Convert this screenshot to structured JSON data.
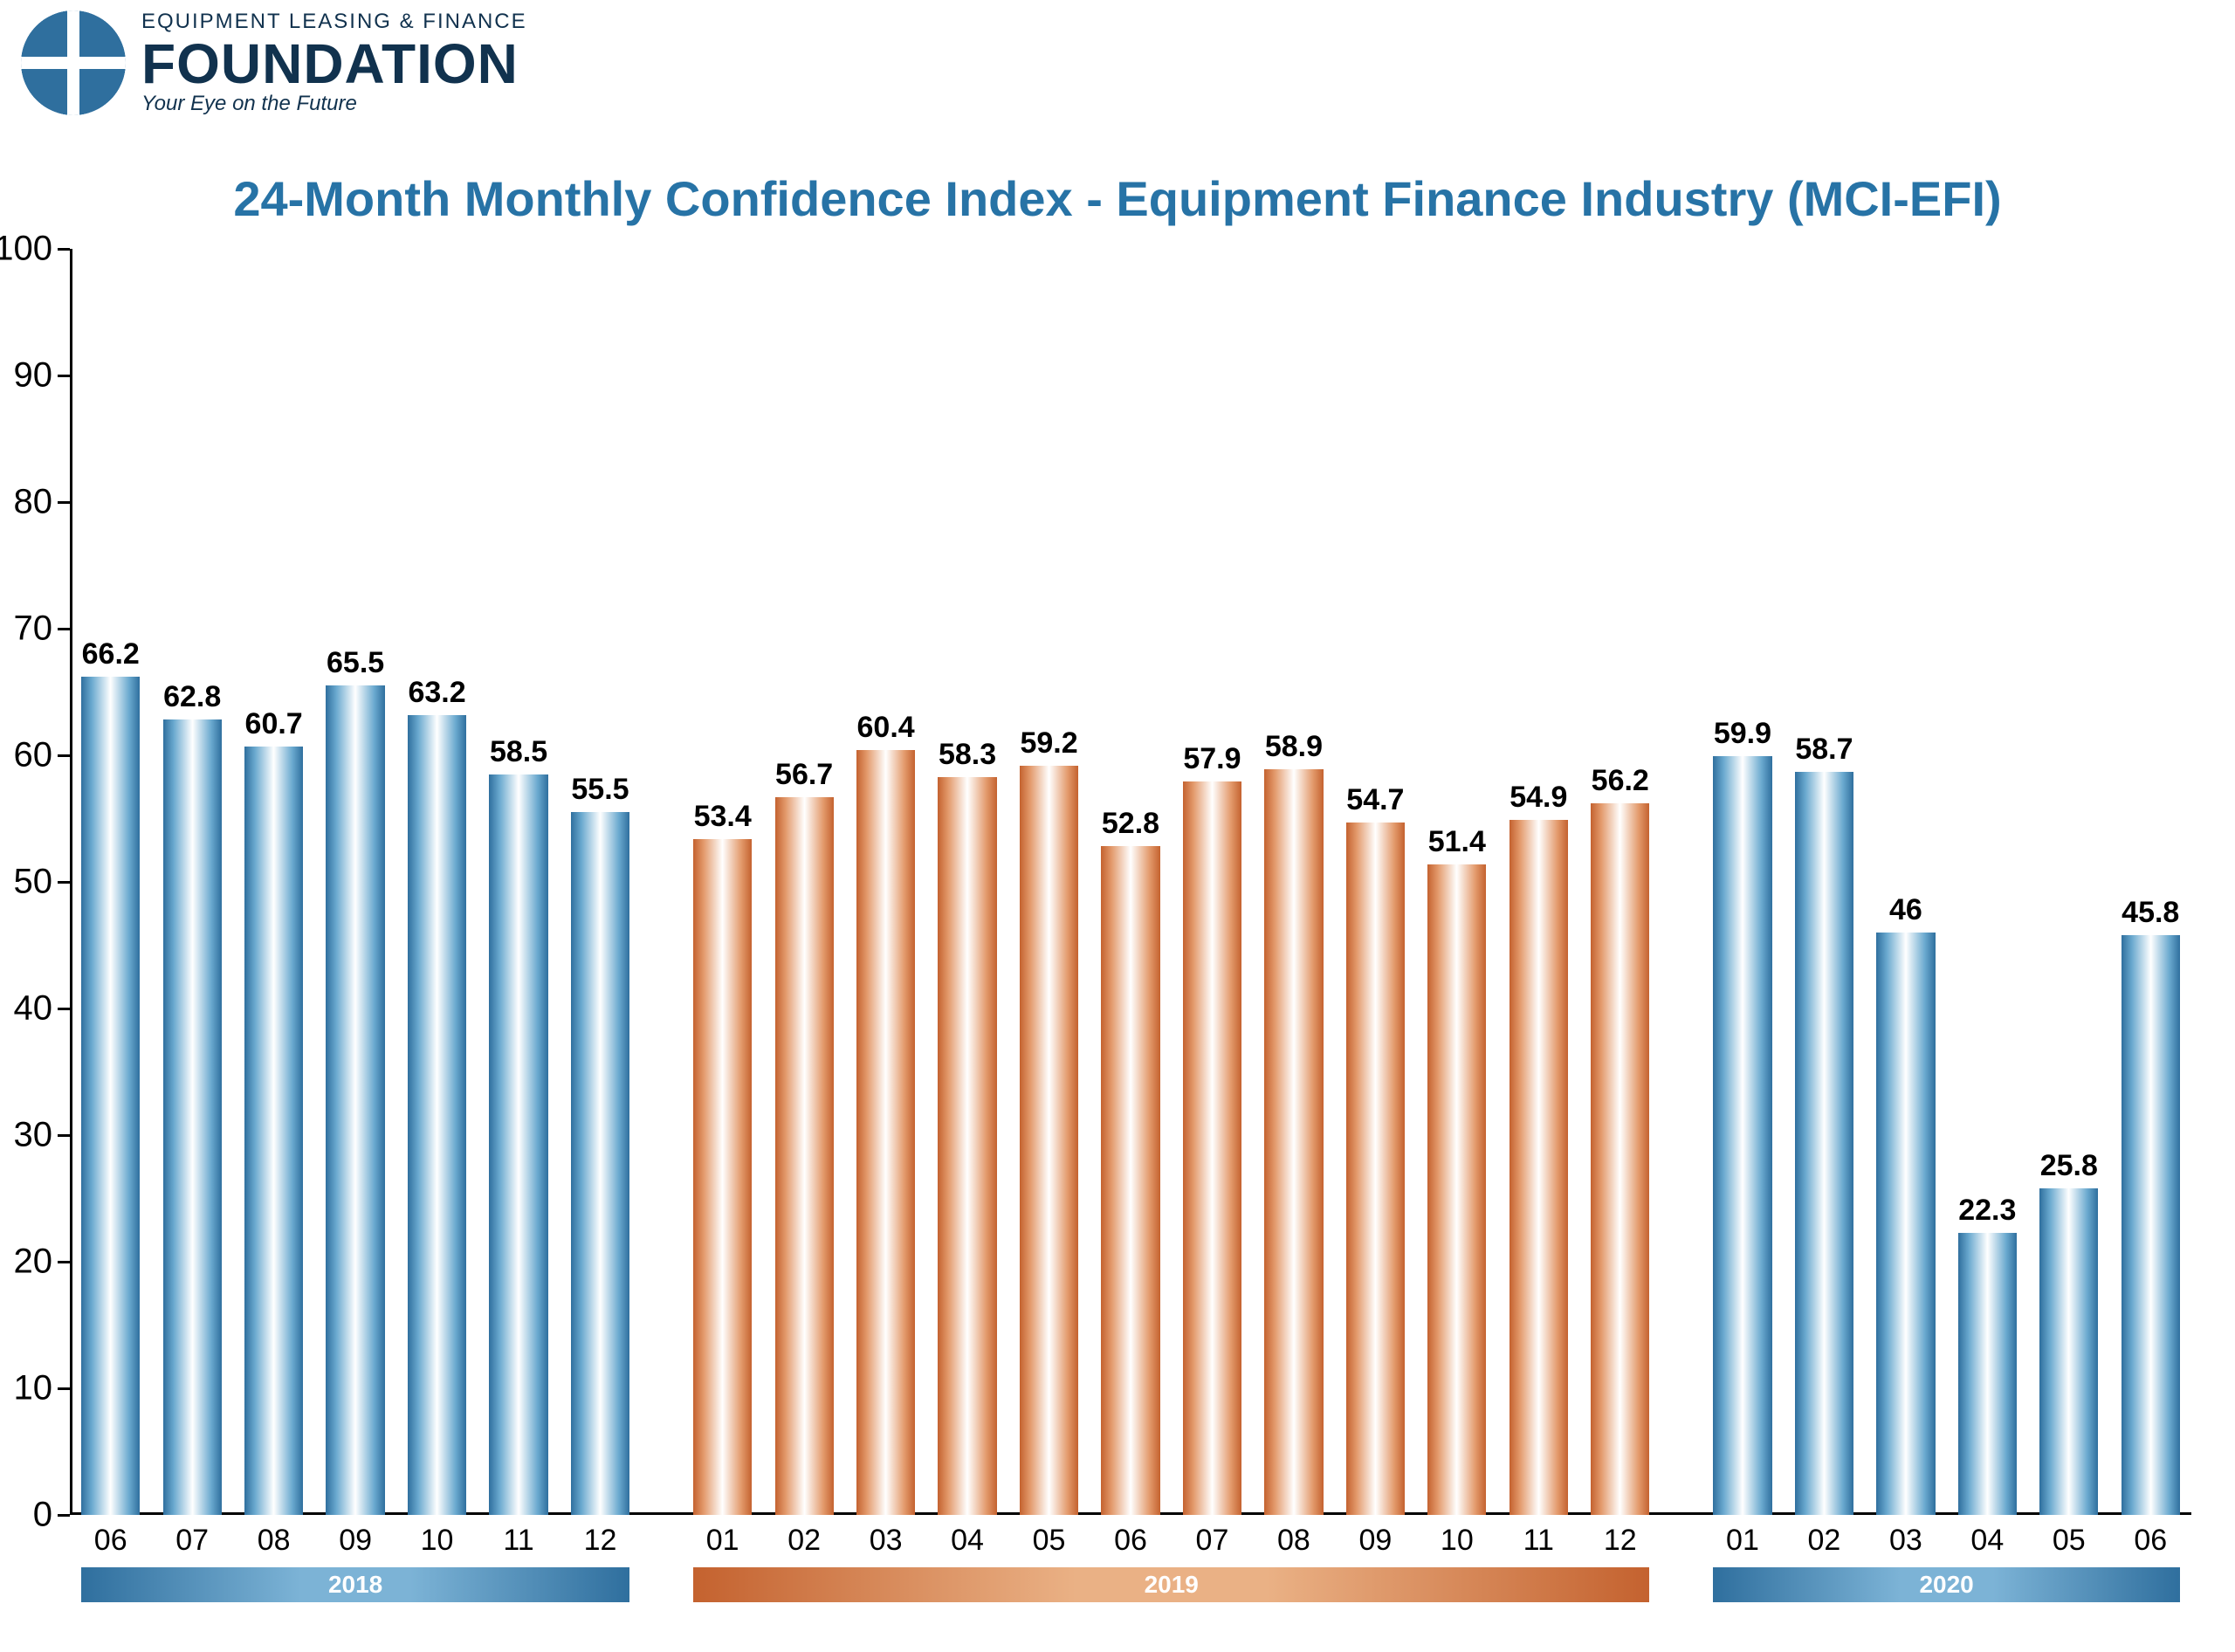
{
  "logo": {
    "sup": "EQUIPMENT LEASING & FINANCE",
    "main": "FOUNDATION",
    "sub": "Your Eye on the Future",
    "color": "#11324e"
  },
  "chart": {
    "type": "bar",
    "title": "24-Month Monthly Confidence Index - Equipment Finance Industry (MCI-EFI)",
    "title_color": "#2773a6",
    "title_fontsize": 56,
    "title_fontweight": 700,
    "background_color": "#ffffff",
    "axis_color": "#000000",
    "ylim": [
      0,
      100
    ],
    "ytick_step": 10,
    "yticks": [
      0,
      10,
      20,
      30,
      40,
      50,
      60,
      70,
      80,
      90,
      100
    ],
    "value_label_fontsize": 34,
    "value_label_fontweight": 700,
    "month_label_fontsize": 34,
    "bar_width_ratio": 0.72,
    "group_gap_ratio": 0.5,
    "colors": {
      "blue_edge": "#2f6f9e",
      "blue_mid": "#6aa9cf",
      "orange_edge": "#c4622f",
      "orange_mid": "#e39a6c"
    },
    "bars": [
      {
        "month": "06",
        "value": 66.2,
        "color": "blue",
        "year": "2018"
      },
      {
        "month": "07",
        "value": 62.8,
        "color": "blue",
        "year": "2018"
      },
      {
        "month": "08",
        "value": 60.7,
        "color": "blue",
        "year": "2018"
      },
      {
        "month": "09",
        "value": 65.5,
        "color": "blue",
        "year": "2018"
      },
      {
        "month": "10",
        "value": 63.2,
        "color": "blue",
        "year": "2018"
      },
      {
        "month": "11",
        "value": 58.5,
        "color": "blue",
        "year": "2018"
      },
      {
        "month": "12",
        "value": 55.5,
        "color": "blue",
        "year": "2018"
      },
      {
        "month": "01",
        "value": 53.4,
        "color": "orange",
        "year": "2019"
      },
      {
        "month": "02",
        "value": 56.7,
        "color": "orange",
        "year": "2019"
      },
      {
        "month": "03",
        "value": 60.4,
        "color": "orange",
        "year": "2019"
      },
      {
        "month": "04",
        "value": 58.3,
        "color": "orange",
        "year": "2019"
      },
      {
        "month": "05",
        "value": 59.2,
        "color": "orange",
        "year": "2019"
      },
      {
        "month": "06",
        "value": 52.8,
        "color": "orange",
        "year": "2019"
      },
      {
        "month": "07",
        "value": 57.9,
        "color": "orange",
        "year": "2019"
      },
      {
        "month": "08",
        "value": 58.9,
        "color": "orange",
        "year": "2019"
      },
      {
        "month": "09",
        "value": 54.7,
        "color": "orange",
        "year": "2019"
      },
      {
        "month": "10",
        "value": 51.4,
        "color": "orange",
        "year": "2019"
      },
      {
        "month": "11",
        "value": 54.9,
        "color": "orange",
        "year": "2019"
      },
      {
        "month": "12",
        "value": 56.2,
        "color": "orange",
        "year": "2019"
      },
      {
        "month": "01",
        "value": 59.9,
        "color": "blue",
        "year": "2020"
      },
      {
        "month": "02",
        "value": 58.7,
        "color": "blue",
        "year": "2020"
      },
      {
        "month": "03",
        "value": 46,
        "color": "blue",
        "year": "2020"
      },
      {
        "month": "04",
        "value": 22.3,
        "color": "blue",
        "year": "2020"
      },
      {
        "month": "05",
        "value": 25.8,
        "color": "blue",
        "year": "2020"
      },
      {
        "month": "06",
        "value": 45.8,
        "color": "blue",
        "year": "2020"
      }
    ],
    "year_groups": [
      {
        "label": "2018",
        "start": 0,
        "end": 6,
        "color": "blue"
      },
      {
        "label": "2019",
        "start": 7,
        "end": 18,
        "color": "orange"
      },
      {
        "label": "2020",
        "start": 19,
        "end": 24,
        "color": "blue"
      }
    ]
  }
}
